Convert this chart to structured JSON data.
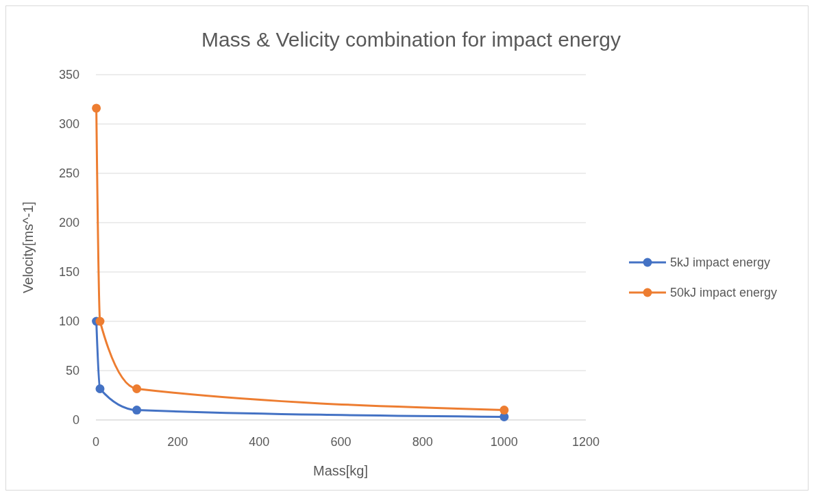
{
  "chart_data": {
    "type": "line",
    "title": "Mass & Velicity combination for impact energy",
    "xlabel": "Mass[kg]",
    "ylabel": "Velocity[ms^-1]",
    "xlim": [
      0,
      1200
    ],
    "xticks": [
      0,
      200,
      400,
      600,
      800,
      1000,
      1200
    ],
    "ylim": [
      0,
      350
    ],
    "yticks": [
      0,
      50,
      100,
      150,
      200,
      250,
      300,
      350
    ],
    "grid": "y",
    "legend": "right",
    "marker": "circle",
    "line_style": "solid",
    "series": [
      {
        "name": "5kJ impact energy",
        "color": "#4472c4",
        "x": [
          1,
          10,
          100,
          1000
        ],
        "values": [
          100,
          31.6,
          10,
          3.16
        ]
      },
      {
        "name": "50kJ impact energy",
        "color": "#ed7d31",
        "x": [
          1,
          10,
          100,
          1000
        ],
        "values": [
          316,
          100,
          31.6,
          10
        ]
      }
    ]
  }
}
